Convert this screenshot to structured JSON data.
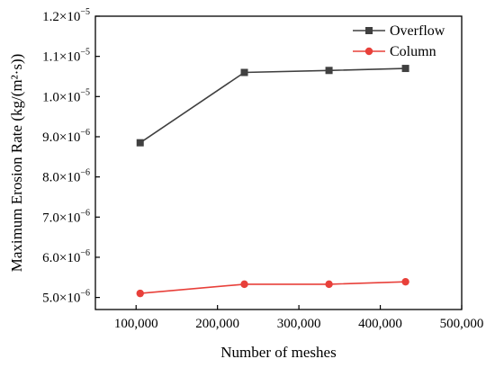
{
  "chart_data": {
    "type": "line",
    "xlabel": "Number of meshes",
    "ylabel": "Maximum Erosion Rate (kg/(m²·s))",
    "xlim": [
      50000,
      500000
    ],
    "ylim": [
      4.7e-06,
      1.2e-05
    ],
    "x_ticks": [
      100000,
      200000,
      300000,
      400000,
      500000
    ],
    "x_tick_labels": [
      "100,000",
      "200,000",
      "300,000",
      "400,000",
      "500,000"
    ],
    "y_ticks": [
      {
        "value": 5e-06,
        "mantissa": "5.0",
        "exp": "−6"
      },
      {
        "value": 6e-06,
        "mantissa": "6.0",
        "exp": "−6"
      },
      {
        "value": 7e-06,
        "mantissa": "7.0",
        "exp": "−6"
      },
      {
        "value": 8e-06,
        "mantissa": "8.0",
        "exp": "−6"
      },
      {
        "value": 9e-06,
        "mantissa": "9.0",
        "exp": "−6"
      },
      {
        "value": 1e-05,
        "mantissa": "1.0",
        "exp": "−5"
      },
      {
        "value": 1.1e-05,
        "mantissa": "1.1",
        "exp": "−5"
      },
      {
        "value": 1.2e-05,
        "mantissa": "1.2",
        "exp": "−5"
      }
    ],
    "legend_position": "top-right",
    "grid": false,
    "series": [
      {
        "name": "Overflow",
        "color": "#404040",
        "marker": "square",
        "x": [
          105000,
          233000,
          337000,
          431000
        ],
        "y": [
          8.85e-06,
          1.06e-05,
          1.065e-05,
          1.07e-05
        ]
      },
      {
        "name": "Column",
        "color": "#e8403a",
        "marker": "circle",
        "x": [
          105000,
          233000,
          337000,
          431000
        ],
        "y": [
          5.1e-06,
          5.33e-06,
          5.33e-06,
          5.39e-06
        ]
      }
    ]
  }
}
